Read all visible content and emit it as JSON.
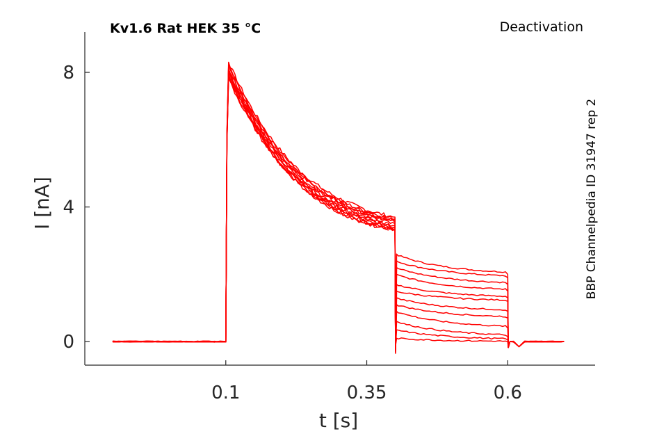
{
  "title": "Kv1.6  Rat  HEK  35 °C",
  "protocol": "Deactivation",
  "source": "BBP Channelpedia ID 31947 rep 2",
  "chart_data": {
    "type": "line",
    "xlabel": "t [s]",
    "ylabel": "I [nA]",
    "xlim": [
      -0.15,
      0.755
    ],
    "ylim": [
      -0.7,
      9.2
    ],
    "xticks": [
      0.1,
      0.35,
      0.6
    ],
    "xtick_labels": [
      "0.1",
      "0.35",
      "0.6"
    ],
    "yticks": [
      0,
      4,
      8
    ],
    "ytick_labels": [
      "0",
      "4",
      "8"
    ],
    "grid": false,
    "color": "#ff0000",
    "pulse_start": 0.1,
    "step_time": 0.4,
    "step_end": 0.6,
    "baseline": 0,
    "series": [
      {
        "peak": 8.3,
        "at_step": 3.7,
        "tail_start": 2.6,
        "tail_end": 2.0
      },
      {
        "peak": 8.2,
        "at_step": 3.65,
        "tail_start": 2.4,
        "tail_end": 1.9
      },
      {
        "peak": 8.2,
        "at_step": 3.6,
        "tail_start": 2.2,
        "tail_end": 1.7
      },
      {
        "peak": 8.1,
        "at_step": 3.6,
        "tail_start": 2.0,
        "tail_end": 1.5
      },
      {
        "peak": 8.1,
        "at_step": 3.55,
        "tail_start": 1.7,
        "tail_end": 1.3
      },
      {
        "peak": 8.0,
        "at_step": 3.5,
        "tail_start": 1.5,
        "tail_end": 1.2
      },
      {
        "peak": 8.0,
        "at_step": 3.45,
        "tail_start": 1.3,
        "tail_end": 0.9
      },
      {
        "peak": 7.95,
        "at_step": 3.4,
        "tail_start": 1.1,
        "tail_end": 0.7
      },
      {
        "peak": 7.9,
        "at_step": 3.4,
        "tail_start": 0.9,
        "tail_end": 0.4
      },
      {
        "peak": 7.9,
        "at_step": 3.35,
        "tail_start": 0.6,
        "tail_end": 0.15
      },
      {
        "peak": 7.85,
        "at_step": 3.3,
        "tail_start": 0.35,
        "tail_end": 0.05
      },
      {
        "peak": 7.8,
        "at_step": 3.3,
        "tail_start": 0.1,
        "tail_end": 0.0
      }
    ]
  }
}
